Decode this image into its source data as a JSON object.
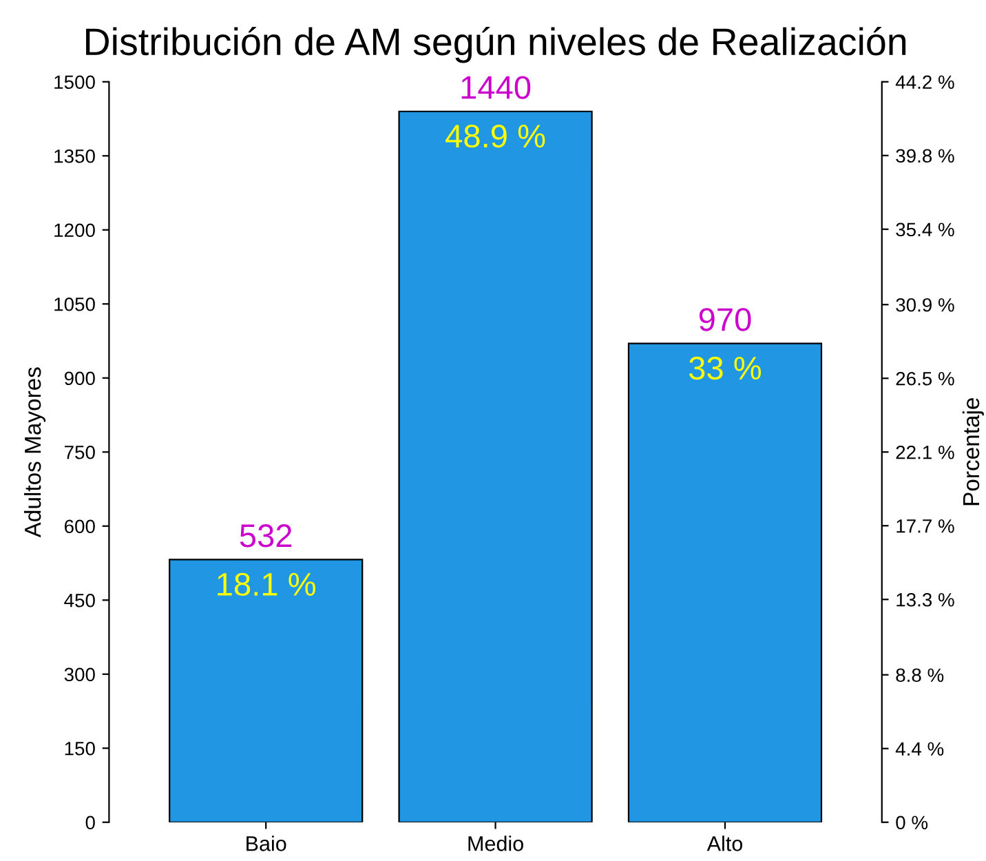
{
  "chart_data": {
    "type": "bar",
    "title": "Distribución de AM según niveles de Realización",
    "ylabel": "Adultos Mayores",
    "y2label": "Porcentaje",
    "categories": [
      "Baio",
      "Medio",
      "Alto"
    ],
    "series": [
      {
        "color": "#2196e3",
        "values": [
          532,
          1440,
          970
        ]
      }
    ],
    "data_labels": true,
    "ylim": [
      0,
      1500
    ],
    "yticks": [
      0,
      150,
      300,
      450,
      600,
      750,
      900,
      1050,
      1200,
      1350,
      1500
    ],
    "y2lim": [
      0,
      44.2
    ],
    "y2ticks": [
      {
        "value": 0,
        "label": "0 %"
      },
      {
        "value": 4.4,
        "label": "4.4 %"
      },
      {
        "value": 8.8,
        "label": "8.8 %"
      },
      {
        "value": 13.3,
        "label": "13.3 %"
      },
      {
        "value": 17.7,
        "label": "17.7 %"
      },
      {
        "value": 22.1,
        "label": "22.1 %"
      },
      {
        "value": 26.5,
        "label": "26.5 %"
      },
      {
        "value": 30.9,
        "label": "30.9 %"
      },
      {
        "value": 35.4,
        "label": "35.4 %"
      },
      {
        "value": 39.8,
        "label": "39.8 %"
      },
      {
        "value": 44.2,
        "label": "44.2 %"
      }
    ],
    "annotations": [
      {
        "text": "18.1 %",
        "x": "Baio",
        "y": 532
      },
      {
        "text": "48.9 %",
        "x": "Medio",
        "y": 1440
      },
      {
        "text": "33 %",
        "x": "Alto",
        "y": 970
      }
    ],
    "grid": false,
    "legend": false
  }
}
